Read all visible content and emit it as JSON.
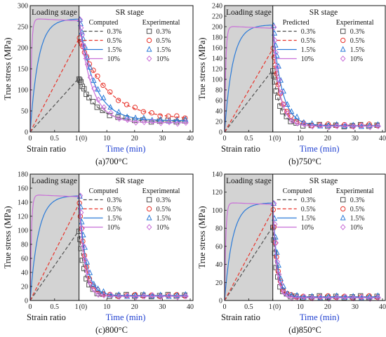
{
  "chart_data": [
    {
      "type": "line",
      "caption": "(a)700°C",
      "ylabel": "True stress (MPa)",
      "xlabel_loading": "Strain ratio",
      "xlabel_sr": "Time (min)",
      "stage_labels": [
        "Loading stage",
        "SR stage"
      ],
      "legend_headers": [
        "Computed",
        "Experimental"
      ],
      "ylim": [
        0,
        300
      ],
      "yticks": [
        "0",
        "50",
        "100",
        "150",
        "200",
        "250",
        "300"
      ],
      "loading_ticks": [
        "0",
        "0.5",
        "1"
      ],
      "sr_ticks": [
        "(0)",
        "10",
        "20",
        "30",
        "40"
      ],
      "sr_xlim": [
        0,
        40
      ],
      "series": [
        {
          "name": "0.3%",
          "color": "#505050",
          "dash": "dashed",
          "marker": "square",
          "peak": 128,
          "end": 25,
          "tau": 6.0,
          "plateau": false,
          "k": 1.0
        },
        {
          "name": "0.5%",
          "color": "#e8332a",
          "dash": "dashed",
          "marker": "circle",
          "peak": 222,
          "end": 30,
          "tau": 10.0,
          "plateau": false,
          "k": 1.0
        },
        {
          "name": "1.5%",
          "color": "#2a7ad8",
          "dash": "solid",
          "marker": "triangle",
          "peak": 268,
          "end": 27,
          "tau": 5.5,
          "plateau": false,
          "k": 1.0
        },
        {
          "name": "10%",
          "color": "#c970d8",
          "dash": "solid",
          "marker": "diamond",
          "peak": 268,
          "end": 22,
          "tau": 4.5,
          "plateau": true,
          "k": 1.0
        }
      ]
    },
    {
      "type": "line",
      "caption": "(b)750°C",
      "ylabel": "True stress (MPa)",
      "xlabel_loading": "Strain ratio",
      "xlabel_sr": "Time (min)",
      "stage_labels": [
        "Loading stage",
        "SR stage"
      ],
      "legend_headers": [
        "Predicted",
        "Experimental"
      ],
      "ylim": [
        0,
        240
      ],
      "yticks": [
        "0",
        "20",
        "40",
        "60",
        "80",
        "100",
        "120",
        "140",
        "160",
        "180",
        "200",
        "220",
        "240"
      ],
      "loading_ticks": [
        "0",
        "0.5",
        "1"
      ],
      "sr_ticks": [
        "(0)",
        "10",
        "20",
        "30",
        "40"
      ],
      "sr_xlim": [
        0,
        40
      ],
      "series": [
        {
          "name": "0.3%",
          "color": "#505050",
          "dash": "dashed",
          "marker": "square",
          "peak": 118,
          "end": 12,
          "tau": 2.6,
          "plateau": false,
          "k": 1.0
        },
        {
          "name": "0.5%",
          "color": "#e8332a",
          "dash": "dashed",
          "marker": "circle",
          "peak": 158,
          "end": 13,
          "tau": 2.9,
          "plateau": false,
          "k": 1.0
        },
        {
          "name": "1.5%",
          "color": "#2a7ad8",
          "dash": "solid",
          "marker": "triangle",
          "peak": 203,
          "end": 12,
          "tau": 3.3,
          "plateau": false,
          "k": 6.0
        },
        {
          "name": "10%",
          "color": "#c970d8",
          "dash": "solid",
          "marker": "diamond",
          "peak": 200,
          "end": 11,
          "tau": 2.4,
          "plateau": true,
          "k": 1.0
        }
      ]
    },
    {
      "type": "line",
      "caption": "(c)800°C",
      "ylabel": "True stress (MPa)",
      "xlabel_loading": "Strain ratio",
      "xlabel_sr": "Time (min)",
      "stage_labels": [
        "Loading stage",
        "SR stage"
      ],
      "legend_headers": [
        "Computed",
        "Experimental"
      ],
      "ylim": [
        0,
        180
      ],
      "yticks": [
        "0",
        "20",
        "40",
        "60",
        "80",
        "100",
        "120",
        "140",
        "160",
        "180"
      ],
      "loading_ticks": [
        "0",
        "0.5",
        "1"
      ],
      "sr_ticks": [
        "(0)",
        "10",
        "20",
        "30",
        "40"
      ],
      "sr_xlim": [
        0,
        40
      ],
      "series": [
        {
          "name": "0.3%",
          "color": "#505050",
          "dash": "dashed",
          "marker": "square",
          "peak": 100,
          "end": 7,
          "tau": 2.0,
          "plateau": false,
          "k": 1.0
        },
        {
          "name": "0.5%",
          "color": "#e8332a",
          "dash": "dashed",
          "marker": "circle",
          "peak": 138,
          "end": 7,
          "tau": 2.2,
          "plateau": false,
          "k": 1.0
        },
        {
          "name": "1.5%",
          "color": "#2a7ad8",
          "dash": "solid",
          "marker": "triangle",
          "peak": 149,
          "end": 7,
          "tau": 2.4,
          "plateau": false,
          "k": 6.0
        },
        {
          "name": "10%",
          "color": "#c970d8",
          "dash": "solid",
          "marker": "diamond",
          "peak": 150,
          "end": 6,
          "tau": 1.8,
          "plateau": true,
          "k": 1.0
        }
      ]
    },
    {
      "type": "line",
      "caption": "(d)850°C",
      "ylabel": "True stress (MPa)",
      "xlabel_loading": "Strain ratio",
      "xlabel_sr": "Time (min)",
      "stage_labels": [
        "Loading stage",
        "SR stage"
      ],
      "legend_headers": [
        "Computed",
        "Experimental"
      ],
      "ylim": [
        0,
        140
      ],
      "yticks": [
        "0",
        "20",
        "40",
        "60",
        "80",
        "100",
        "120",
        "140"
      ],
      "loading_ticks": [
        "0",
        "0.5",
        "1"
      ],
      "sr_ticks": [
        "(0)",
        "10",
        "20",
        "30",
        "40"
      ],
      "sr_xlim": [
        0,
        40
      ],
      "series": [
        {
          "name": "0.3%",
          "color": "#505050",
          "dash": "dashed",
          "marker": "square",
          "peak": 82,
          "end": 4,
          "tau": 1.4,
          "plateau": false,
          "k": 1.0
        },
        {
          "name": "0.5%",
          "color": "#e8332a",
          "dash": "dashed",
          "marker": "circle",
          "peak": 100,
          "end": 4,
          "tau": 1.5,
          "plateau": false,
          "k": 1.0
        },
        {
          "name": "1.5%",
          "color": "#2a7ad8",
          "dash": "solid",
          "marker": "triangle",
          "peak": 108,
          "end": 4,
          "tau": 1.6,
          "plateau": false,
          "k": 6.0
        },
        {
          "name": "10%",
          "color": "#c970d8",
          "dash": "solid",
          "marker": "diamond",
          "peak": 108,
          "end": 3,
          "tau": 1.3,
          "plateau": true,
          "k": 1.0
        }
      ]
    }
  ]
}
